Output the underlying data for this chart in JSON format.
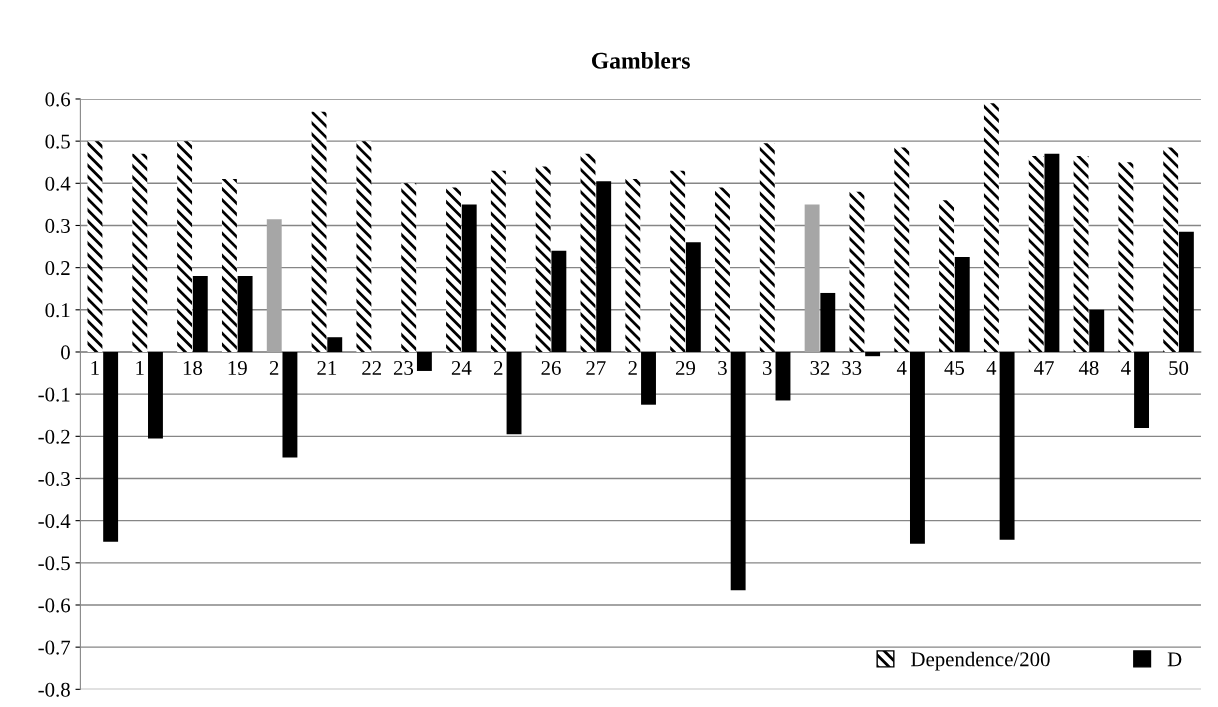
{
  "chart_data": {
    "type": "bar",
    "title": "Gamblers",
    "categories": [
      "1",
      "1",
      "18",
      "19",
      "2",
      "21",
      "22",
      "23",
      "24",
      "2",
      "26",
      "27",
      "2",
      "29",
      "3",
      "3",
      "32",
      "33",
      "4",
      "45",
      "4",
      "47",
      "48",
      "4",
      "50"
    ],
    "series": [
      {
        "name": "Dependence/200",
        "color": "#ffffff",
        "colors": [
          "#ffffff",
          "#ffffff",
          "#ffffff",
          "#ffffff",
          "#a6a6a6",
          "#ffffff",
          "#ffffff",
          "#ffffff",
          "#ffffff",
          "#ffffff",
          "#ffffff",
          "#ffffff",
          "#ffffff",
          "#ffffff",
          "#ffffff",
          "#ffffff",
          "#a6a6a6",
          "#ffffff",
          "#ffffff",
          "#ffffff",
          "#ffffff",
          "#ffffff",
          "#ffffff",
          "#ffffff",
          "#ffffff"
        ],
        "values": [
          0.5,
          0.47,
          0.5,
          0.41,
          0.315,
          0.57,
          0.5,
          0.4,
          0.39,
          0.43,
          0.44,
          0.47,
          0.41,
          0.43,
          0.39,
          0.495,
          0.35,
          0.38,
          0.485,
          0.36,
          0.59,
          0.465,
          0.465,
          0.45,
          0.485
        ]
      },
      {
        "name": "D",
        "color": "#000000",
        "values": [
          -0.45,
          -0.205,
          0.18,
          0.18,
          -0.25,
          0.035,
          null,
          -0.045,
          0.35,
          -0.195,
          0.24,
          0.405,
          -0.125,
          0.26,
          -0.565,
          -0.115,
          0.14,
          -0.01,
          -0.455,
          0.225,
          -0.445,
          0.47,
          0.1,
          -0.18,
          0.285
        ]
      }
    ],
    "ylim": [
      -0.8,
      0.6
    ],
    "yticks": [
      {
        "value": -0.8,
        "label": "-0.8"
      },
      {
        "value": -0.7,
        "label": "-0.7"
      },
      {
        "value": -0.6,
        "label": "-0.6"
      },
      {
        "value": -0.5,
        "label": "-0.5"
      },
      {
        "value": -0.4,
        "label": "-0.4"
      },
      {
        "value": -0.3,
        "label": "-0.3"
      },
      {
        "value": -0.2,
        "label": "-0.2"
      },
      {
        "value": -0.1,
        "label": "-0.1"
      },
      0,
      0.1,
      0.2,
      0.3,
      0.4,
      0.5,
      0.6
    ],
    "grid": "y",
    "legend": "bottom right"
  }
}
